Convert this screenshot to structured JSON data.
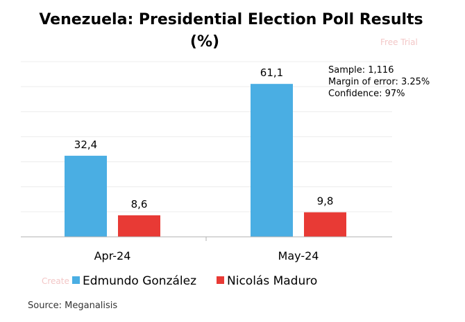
{
  "chart_data": {
    "type": "bar",
    "title_line1": "Venezuela: Presidential Election Poll Results",
    "title_line2": "(%)",
    "categories": [
      "Apr-24",
      "May-24"
    ],
    "series": [
      {
        "name": "Edmundo González",
        "values": [
          32.4,
          61.1
        ],
        "labels": [
          "32,4",
          "61,1"
        ],
        "color": "#4aaee3"
      },
      {
        "name": "Nicolás Maduro",
        "values": [
          8.6,
          9.8
        ],
        "labels": [
          "8,6",
          "9,8"
        ],
        "color": "#e83a35"
      }
    ],
    "ylim": [
      0,
      70
    ],
    "grid": true,
    "legend": "bottom",
    "annotation": [
      "Sample: 1,116",
      "Margin of error: 3.25%",
      "Confidence: 97%"
    ],
    "source": "Source: Meganalisis"
  },
  "watermarks": [
    "Free Trial",
    "Create"
  ]
}
